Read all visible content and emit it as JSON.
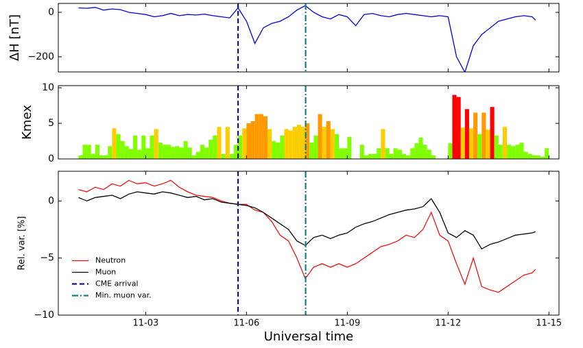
{
  "chart_data": [
    {
      "type": "line",
      "ylabel": "ΔH [nT]",
      "ylim": [
        -268,
        40
      ],
      "yticks": [
        0,
        {
          "value": -200,
          "label": "−200"
        }
      ],
      "x": [
        1,
        1.25,
        1.5,
        1.75,
        2,
        2.25,
        2.5,
        2.75,
        3,
        3.25,
        3.5,
        3.75,
        4,
        4.25,
        4.5,
        4.75,
        5,
        5.25,
        5.5,
        5.75,
        6,
        6.25,
        6.5,
        6.75,
        7,
        7.25,
        7.5,
        7.75,
        8,
        8.25,
        8.5,
        8.75,
        9,
        9.25,
        9.5,
        9.75,
        10,
        10.25,
        10.5,
        10.75,
        11,
        11.25,
        11.5,
        11.75,
        12,
        12.25,
        12.5,
        12.75,
        13,
        13.25,
        13.5,
        13.75,
        14,
        14.25,
        14.5,
        14.6
      ],
      "series": [
        {
          "color": "#0000dd",
          "values": [
            20,
            18,
            22,
            10,
            15,
            12,
            0,
            -5,
            -10,
            -20,
            -15,
            -5,
            -15,
            -10,
            -12,
            -8,
            -15,
            -20,
            -25,
            20,
            -40,
            -140,
            -70,
            -50,
            -40,
            -20,
            10,
            30,
            0,
            -20,
            -30,
            -10,
            -20,
            -60,
            -10,
            -5,
            -15,
            -20,
            -10,
            -5,
            -10,
            -15,
            -20,
            -15,
            -20,
            -200,
            -270,
            -150,
            -100,
            -70,
            -40,
            -30,
            -20,
            -15,
            -20,
            -35
          ]
        }
      ]
    },
    {
      "type": "bar",
      "ylabel": "Kmex",
      "ylim": [
        0,
        10.3
      ],
      "yticks": [
        0,
        5,
        10
      ],
      "x": [
        1.0625,
        1.1875,
        1.3125,
        1.4375,
        1.5625,
        1.6875,
        1.8125,
        1.9375,
        2.0625,
        2.1875,
        2.3125,
        2.4375,
        2.5625,
        2.6875,
        2.8125,
        2.9375,
        3.0625,
        3.1875,
        3.3125,
        3.4375,
        3.5625,
        3.6875,
        3.8125,
        3.9375,
        4.0625,
        4.1875,
        4.3125,
        4.4375,
        4.5625,
        4.6875,
        4.8125,
        4.9375,
        5.0625,
        5.1875,
        5.3125,
        5.4375,
        5.5625,
        5.6875,
        5.8125,
        5.9375,
        6.0625,
        6.1875,
        6.3125,
        6.4375,
        6.5625,
        6.6875,
        6.8125,
        6.9375,
        7.0625,
        7.1875,
        7.3125,
        7.4375,
        7.5625,
        7.6875,
        7.8125,
        7.9375,
        8.0625,
        8.1875,
        8.3125,
        8.4375,
        8.5625,
        8.6875,
        8.8125,
        8.9375,
        9.0625,
        9.1875,
        9.3125,
        9.4375,
        9.5625,
        9.6875,
        9.8125,
        9.9375,
        10.0625,
        10.1875,
        10.3125,
        10.4375,
        10.5625,
        10.6875,
        10.8125,
        10.9375,
        11.0625,
        11.1875,
        11.3125,
        11.4375,
        11.5625,
        11.6875,
        11.8125,
        11.9375,
        12.0625,
        12.1875,
        12.3125,
        12.4375,
        12.5625,
        12.6875,
        12.8125,
        12.9375,
        13.0625,
        13.1875,
        13.3125,
        13.4375,
        13.5625,
        13.6875,
        13.8125,
        13.9375,
        14.0625,
        14.1875,
        14.3125,
        14.4375,
        14.5625,
        14.6875,
        14.8125,
        14.9375
      ],
      "values": [
        0.5,
        2,
        2,
        0.7,
        2,
        0.5,
        0.5,
        1.8,
        4.3,
        3.5,
        2.5,
        1.8,
        1.4,
        3.3,
        1.3,
        3.3,
        1.5,
        3.3,
        4.2,
        2.3,
        2,
        2,
        1.7,
        1.8,
        1.6,
        2.5,
        1.6,
        0.5,
        1,
        2,
        1.6,
        2.7,
        3.3,
        4.5,
        0.7,
        4.5,
        0.7,
        2,
        3.3,
        4.3,
        5,
        5.3,
        6.3,
        6.3,
        6,
        4.2,
        2.5,
        2.3,
        3.3,
        4.2,
        4,
        4.5,
        4.8,
        4.5,
        5,
        2.3,
        3.3,
        6.3,
        4.5,
        5.3,
        4.2,
        3.5,
        1.5,
        1.5,
        3.1,
        0,
        0,
        2,
        0.5,
        0.7,
        0.7,
        1.5,
        4.2,
        1.5,
        0.7,
        1.5,
        1.3,
        0.7,
        0.5,
        1.5,
        2.2,
        3,
        2,
        1.3,
        0.5,
        0,
        0,
        0,
        2.2,
        9,
        8.7,
        4.4,
        7,
        4.3,
        6.5,
        3.5,
        6.5,
        4.1,
        7.3,
        3.3,
        2,
        4.5,
        2,
        1.8,
        2,
        2.3,
        1,
        0.7,
        0.5,
        0.5,
        0.3,
        1.5
      ],
      "colors": [
        "#80ff00",
        "#80ff00",
        "#80ff00",
        "#80ff00",
        "#80ff00",
        "#80ff00",
        "#80ff00",
        "#80ff00",
        "#ffcc00",
        "#80ff00",
        "#80ff00",
        "#80ff00",
        "#80ff00",
        "#80ff00",
        "#80ff00",
        "#80ff00",
        "#80ff00",
        "#80ff00",
        "#ffcc00",
        "#80ff00",
        "#80ff00",
        "#80ff00",
        "#80ff00",
        "#80ff00",
        "#80ff00",
        "#80ff00",
        "#80ff00",
        "#80ff00",
        "#80ff00",
        "#80ff00",
        "#80ff00",
        "#80ff00",
        "#80ff00",
        "#ffcc00",
        "#80ff00",
        "#ffcc00",
        "#80ff00",
        "#80ff00",
        "#80ff00",
        "#ffcc00",
        "#ff9900",
        "#ff9900",
        "#ff9900",
        "#ff9900",
        "#ff9900",
        "#ffcc00",
        "#80ff00",
        "#80ff00",
        "#80ff00",
        "#ffcc00",
        "#ffcc00",
        "#ffcc00",
        "#ffcc00",
        "#ffcc00",
        "#ff9900",
        "#80ff00",
        "#80ff00",
        "#ff9900",
        "#ffcc00",
        "#ff9900",
        "#ffcc00",
        "#80ff00",
        "#80ff00",
        "#80ff00",
        "#80ff00",
        "#80ff00",
        "#80ff00",
        "#80ff00",
        "#80ff00",
        "#80ff00",
        "#80ff00",
        "#80ff00",
        "#ffcc00",
        "#80ff00",
        "#80ff00",
        "#80ff00",
        "#80ff00",
        "#80ff00",
        "#80ff00",
        "#80ff00",
        "#80ff00",
        "#80ff00",
        "#80ff00",
        "#80ff00",
        "#80ff00",
        "#80ff00",
        "#80ff00",
        "#80ff00",
        "#80ff00",
        "#ff0000",
        "#ff0000",
        "#ffcc00",
        "#ff0000",
        "#ffcc00",
        "#ff9900",
        "#80ff00",
        "#ff9900",
        "#ffcc00",
        "#ff0000",
        "#80ff00",
        "#80ff00",
        "#ffcc00",
        "#80ff00",
        "#80ff00",
        "#80ff00",
        "#80ff00",
        "#80ff00",
        "#80ff00",
        "#80ff00",
        "#80ff00",
        "#80ff00",
        "#80ff00"
      ]
    },
    {
      "type": "line",
      "ylabel": "Rel. var. [%]",
      "xlabel": "Universal time",
      "ylim": [
        -10,
        2.6
      ],
      "yticks": [
        0,
        {
          "value": -5,
          "label": "−5"
        },
        {
          "value": -10,
          "label": "−10"
        }
      ],
      "xlim": [
        0.4,
        15.3
      ],
      "xticks": [
        {
          "value": 3,
          "label": "11-03"
        },
        {
          "value": 6,
          "label": "11-06"
        },
        {
          "value": 9,
          "label": "11-09"
        },
        {
          "value": 12,
          "label": "11-12"
        },
        {
          "value": 15,
          "label": "11-15"
        }
      ],
      "legend": "lower left",
      "x": [
        1,
        1.25,
        1.5,
        1.75,
        2,
        2.25,
        2.5,
        2.75,
        3,
        3.25,
        3.5,
        3.75,
        4,
        4.25,
        4.5,
        4.75,
        5,
        5.25,
        5.5,
        5.75,
        6,
        6.25,
        6.5,
        6.75,
        7,
        7.25,
        7.5,
        7.75,
        8,
        8.25,
        8.5,
        8.75,
        9,
        9.25,
        9.5,
        9.75,
        10,
        10.25,
        10.5,
        10.75,
        11,
        11.25,
        11.5,
        11.75,
        12,
        12.25,
        12.5,
        12.75,
        13,
        13.25,
        13.5,
        13.75,
        14,
        14.25,
        14.5,
        14.6
      ],
      "series": [
        {
          "name": "Neutron",
          "color": "#ee1111",
          "values": [
            1,
            0.8,
            1.2,
            1.0,
            1.5,
            1.3,
            1.8,
            1.5,
            1.6,
            1.3,
            1.5,
            1.8,
            1.2,
            0.8,
            0.5,
            0.4,
            0.3,
            0,
            -0.2,
            -0.3,
            -0.3,
            -0.8,
            -1.0,
            -1.8,
            -3,
            -3.5,
            -5,
            -6.8,
            -5.8,
            -5.5,
            -5.8,
            -5.5,
            -5.8,
            -5.5,
            -5,
            -4.5,
            -4,
            -3.8,
            -3.5,
            -3,
            -3.2,
            -2.5,
            -1,
            -3,
            -3.5,
            -5.5,
            -7.3,
            -5,
            -7.5,
            -7.8,
            -8,
            -7.5,
            -7,
            -6.5,
            -6.3,
            -6.0
          ]
        },
        {
          "name": "Muon",
          "color": "#000000",
          "values": [
            0.3,
            0,
            0.3,
            0.4,
            0.5,
            0.2,
            0.6,
            0.8,
            0.7,
            0.6,
            0.8,
            0.7,
            0.5,
            0.3,
            0.4,
            0.1,
            0.2,
            -0.1,
            -0.2,
            -0.3,
            -0.4,
            -0.6,
            -1,
            -1.5,
            -2,
            -2.5,
            -3.5,
            -3.9,
            -3.2,
            -3,
            -3.3,
            -3,
            -2.8,
            -2.3,
            -2,
            -1.8,
            -1.5,
            -1.2,
            -1,
            -0.8,
            -0.7,
            -0.5,
            0.2,
            -1,
            -2.8,
            -3.2,
            -2.6,
            -3,
            -4.2,
            -3.8,
            -3.6,
            -3.3,
            -3,
            -2.9,
            -2.8,
            -2.7
          ]
        }
      ],
      "vlines": [
        {
          "name": "CME arrival",
          "x": 5.75,
          "color": "#14147a",
          "style": "dashed"
        },
        {
          "name": "Min. muon var.",
          "x": 7.76,
          "color": "#128080",
          "style": "dashdot"
        }
      ]
    }
  ]
}
